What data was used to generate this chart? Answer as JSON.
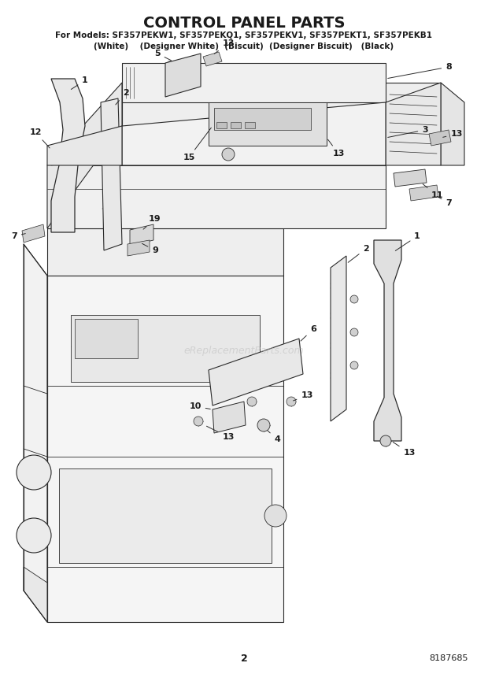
{
  "title": "CONTROL PANEL PARTS",
  "subtitle_line1": "For Models: SF357PEKW1, SF357PEKQ1, SF357PEKV1, SF357PEKT1, SF357PEKB1",
  "subtitle_line2": "(White)    (Designer White)  (Biscuit)  (Designer Biscuit)   (Black)",
  "page_number": "2",
  "part_number": "8187685",
  "watermark": "eReplacementParts.com",
  "bg": "#ffffff",
  "lc": "#2a2a2a",
  "tc": "#1a1a1a",
  "fc_light": "#f0f0f0",
  "fc_mid": "#d8d8d8",
  "fc_dark": "#c0c0c0"
}
